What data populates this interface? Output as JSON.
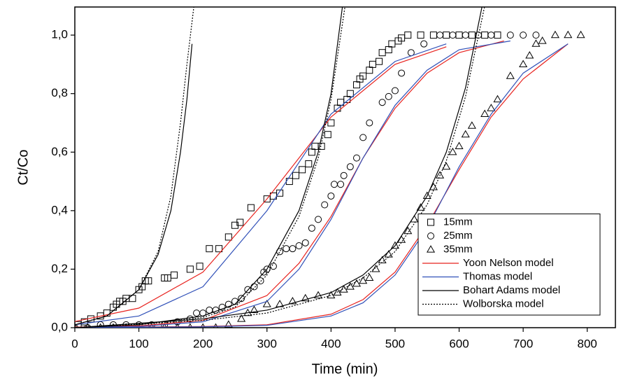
{
  "chart_data": {
    "type": "scatter",
    "x_label": "Time (min)",
    "y_label": "Ct/Co",
    "xlim": [
      0,
      844
    ],
    "ylim": [
      0,
      1.096
    ],
    "xticks": [
      0,
      100,
      200,
      300,
      400,
      500,
      600,
      700,
      800
    ],
    "yticks": [
      {
        "value": 0,
        "label": "0,0"
      },
      {
        "value": 0.2,
        "label": "0,2"
      },
      {
        "value": 0.4,
        "label": "0,4"
      },
      {
        "value": 0.6,
        "label": "0,6"
      },
      {
        "value": 0.8,
        "label": "0,8"
      },
      {
        "value": 1.0,
        "label": "1,0"
      }
    ],
    "legend": "lower right",
    "series": [
      {
        "name": "15mm",
        "type": "scatter",
        "marker": "square",
        "color": "#000000",
        "x": [
          5,
          15,
          25,
          40,
          50,
          60,
          65,
          70,
          75,
          80,
          90,
          100,
          105,
          110,
          115,
          140,
          145,
          155,
          180,
          195,
          210,
          225,
          240,
          250,
          258,
          275,
          300,
          310,
          320,
          335,
          345,
          355,
          365,
          370,
          375,
          385,
          395,
          400,
          410,
          415,
          425,
          430,
          440,
          445,
          450,
          460,
          465,
          475,
          480,
          490,
          495,
          505,
          510,
          520,
          540,
          560,
          580,
          600,
          620,
          640,
          660
        ],
        "values": [
          0.01,
          0.02,
          0.03,
          0.04,
          0.05,
          0.07,
          0.08,
          0.09,
          0.09,
          0.1,
          0.1,
          0.13,
          0.14,
          0.16,
          0.16,
          0.17,
          0.17,
          0.18,
          0.2,
          0.21,
          0.27,
          0.27,
          0.31,
          0.35,
          0.36,
          0.41,
          0.44,
          0.45,
          0.46,
          0.5,
          0.52,
          0.54,
          0.56,
          0.6,
          0.62,
          0.62,
          0.66,
          0.7,
          0.75,
          0.77,
          0.78,
          0.8,
          0.83,
          0.85,
          0.86,
          0.88,
          0.9,
          0.91,
          0.94,
          0.95,
          0.97,
          0.98,
          0.99,
          1.0,
          1.0,
          1.0,
          1.0,
          1.0,
          1.0,
          1.0,
          1.0
        ]
      },
      {
        "name": "25mm",
        "type": "scatter",
        "marker": "circle",
        "color": "#000000",
        "x": [
          0,
          20,
          40,
          60,
          80,
          100,
          120,
          140,
          160,
          180,
          190,
          200,
          210,
          220,
          230,
          240,
          250,
          260,
          270,
          280,
          290,
          295,
          300,
          310,
          320,
          330,
          340,
          350,
          360,
          370,
          380,
          390,
          400,
          405,
          415,
          420,
          430,
          440,
          450,
          460,
          480,
          490,
          500,
          510,
          525,
          545,
          570,
          590,
          610,
          630,
          650,
          680,
          700,
          720
        ],
        "values": [
          0,
          0,
          0.01,
          0.01,
          0.01,
          0.01,
          0.01,
          0.01,
          0.02,
          0.03,
          0.05,
          0.05,
          0.06,
          0.06,
          0.07,
          0.08,
          0.09,
          0.1,
          0.13,
          0.14,
          0.16,
          0.19,
          0.2,
          0.21,
          0.26,
          0.27,
          0.27,
          0.28,
          0.29,
          0.34,
          0.37,
          0.42,
          0.45,
          0.49,
          0.49,
          0.52,
          0.55,
          0.58,
          0.65,
          0.7,
          0.77,
          0.79,
          0.81,
          0.87,
          0.94,
          0.97,
          1.0,
          1.0,
          1.0,
          1.0,
          1.0,
          1.0,
          1.0,
          1.0
        ]
      },
      {
        "name": "35mm",
        "type": "scatter",
        "marker": "triangle",
        "color": "#000000",
        "x": [
          0,
          20,
          40,
          60,
          80,
          100,
          120,
          140,
          160,
          180,
          200,
          220,
          240,
          260,
          270,
          280,
          300,
          320,
          340,
          360,
          380,
          400,
          410,
          420,
          430,
          440,
          450,
          460,
          470,
          480,
          490,
          500,
          510,
          520,
          530,
          540,
          550,
          560,
          570,
          580,
          590,
          600,
          610,
          620,
          640,
          650,
          660,
          680,
          700,
          710,
          720,
          730,
          750,
          770,
          790
        ],
        "values": [
          0,
          0,
          0,
          0,
          0,
          0,
          0,
          0,
          0,
          0,
          0,
          0,
          0.01,
          0.03,
          0.05,
          0.06,
          0.08,
          0.08,
          0.09,
          0.1,
          0.11,
          0.11,
          0.12,
          0.13,
          0.14,
          0.15,
          0.16,
          0.17,
          0.2,
          0.23,
          0.25,
          0.28,
          0.3,
          0.33,
          0.37,
          0.41,
          0.45,
          0.48,
          0.52,
          0.55,
          0.6,
          0.62,
          0.66,
          0.69,
          0.73,
          0.75,
          0.78,
          0.86,
          0.9,
          0.93,
          0.97,
          0.98,
          1.0,
          1.0,
          1.0
        ]
      },
      {
        "name": "Yoon Nelson model",
        "type": "line",
        "color": "#e8231f",
        "dash": false,
        "curves": [
          {
            "x": [
              0,
              100,
              200,
              300,
              400,
              500,
              580
            ],
            "values": [
              0.021,
              0.067,
              0.19,
              0.44,
              0.72,
              0.9,
              0.96
            ]
          },
          {
            "x": [
              0,
              100,
              200,
              300,
              350,
              400,
              450,
              500,
              550,
              600,
              670
            ],
            "values": [
              0.002,
              0.006,
              0.025,
              0.11,
              0.22,
              0.38,
              0.58,
              0.75,
              0.87,
              0.94,
              0.98
            ]
          },
          {
            "x": [
              0,
              200,
              300,
              400,
              450,
              500,
              550,
              600,
              650,
              700,
              770
            ],
            "values": [
              0.001,
              0.004,
              0.01,
              0.046,
              0.096,
              0.19,
              0.35,
              0.54,
              0.72,
              0.85,
              0.97
            ]
          }
        ]
      },
      {
        "name": "Thomas model",
        "type": "line",
        "color": "#3050b8",
        "dash": false,
        "curves": [
          {
            "x": [
              0,
              100,
              200,
              300,
              400,
              500,
              580
            ],
            "values": [
              0.01,
              0.04,
              0.14,
              0.4,
              0.73,
              0.91,
              0.97
            ]
          },
          {
            "x": [
              0,
              100,
              200,
              300,
              350,
              400,
              450,
              500,
              550,
              600,
              680
            ],
            "values": [
              0.001,
              0.004,
              0.02,
              0.09,
              0.2,
              0.37,
              0.58,
              0.76,
              0.88,
              0.95,
              0.98
            ]
          },
          {
            "x": [
              0,
              200,
              300,
              400,
              450,
              500,
              550,
              600,
              650,
              700,
              770
            ],
            "values": [
              0,
              0.003,
              0.008,
              0.04,
              0.085,
              0.18,
              0.34,
              0.55,
              0.73,
              0.87,
              0.97
            ]
          }
        ]
      },
      {
        "name": "Bohart Adams model",
        "type": "line",
        "color": "#000000",
        "dash": false,
        "curves": [
          {
            "x": [
              0,
              50,
              100,
              130,
              150,
              165,
              175,
              183
            ],
            "values": [
              0.01,
              0.04,
              0.13,
              0.25,
              0.4,
              0.6,
              0.78,
              0.97
            ]
          },
          {
            "x": [
              0,
              100,
              200,
              250,
              300,
              350,
              380,
              400,
              418
            ],
            "values": [
              0,
              0.01,
              0.04,
              0.08,
              0.2,
              0.4,
              0.6,
              0.8,
              1.1
            ]
          },
          {
            "x": [
              0,
              200,
              300,
              400,
              450,
              500,
              550,
              580,
              610,
              636
            ],
            "values": [
              0,
              0.03,
              0.06,
              0.12,
              0.18,
              0.28,
              0.45,
              0.6,
              0.82,
              1.1
            ]
          }
        ]
      },
      {
        "name": "Wolborska model",
        "type": "line",
        "color": "#000000",
        "dash": true,
        "curves": [
          {
            "x": [
              0,
              50,
              100,
              130,
              150,
              165,
              175,
              186
            ],
            "values": [
              0.01,
              0.04,
              0.13,
              0.26,
              0.45,
              0.7,
              0.9,
              1.1
            ]
          },
          {
            "x": [
              0,
              100,
              200,
              250,
              300,
              350,
              380,
              400,
              422
            ],
            "values": [
              0,
              0.01,
              0.035,
              0.07,
              0.18,
              0.38,
              0.58,
              0.78,
              1.1
            ]
          },
          {
            "x": [
              0,
              200,
              300,
              400,
              450,
              500,
              550,
              580,
              610,
              640
            ],
            "values": [
              0,
              0.025,
              0.05,
              0.11,
              0.17,
              0.26,
              0.42,
              0.57,
              0.79,
              1.1
            ]
          }
        ]
      }
    ]
  }
}
